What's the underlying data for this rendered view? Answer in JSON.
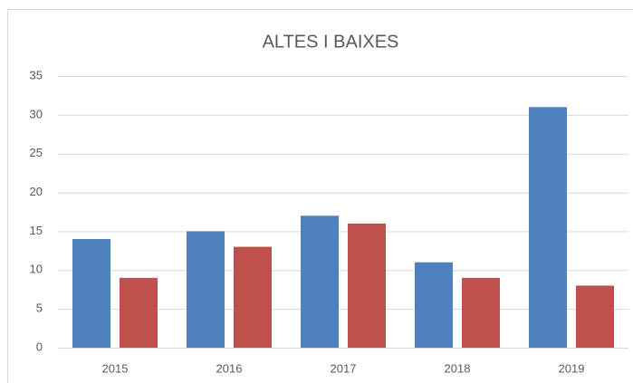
{
  "chart_data": {
    "type": "bar",
    "title": "ALTES I BAIXES",
    "categories": [
      "2015",
      "2016",
      "2017",
      "2018",
      "2019"
    ],
    "series": [
      {
        "color": "#4f81bd",
        "values": [
          14,
          15,
          17,
          11,
          31
        ]
      },
      {
        "color": "#c0504d",
        "values": [
          9,
          13,
          16,
          9,
          8
        ]
      }
    ],
    "ylim": [
      0,
      35
    ],
    "yticks": [
      0,
      5,
      10,
      15,
      20,
      25,
      30,
      35
    ],
    "grid": true
  }
}
